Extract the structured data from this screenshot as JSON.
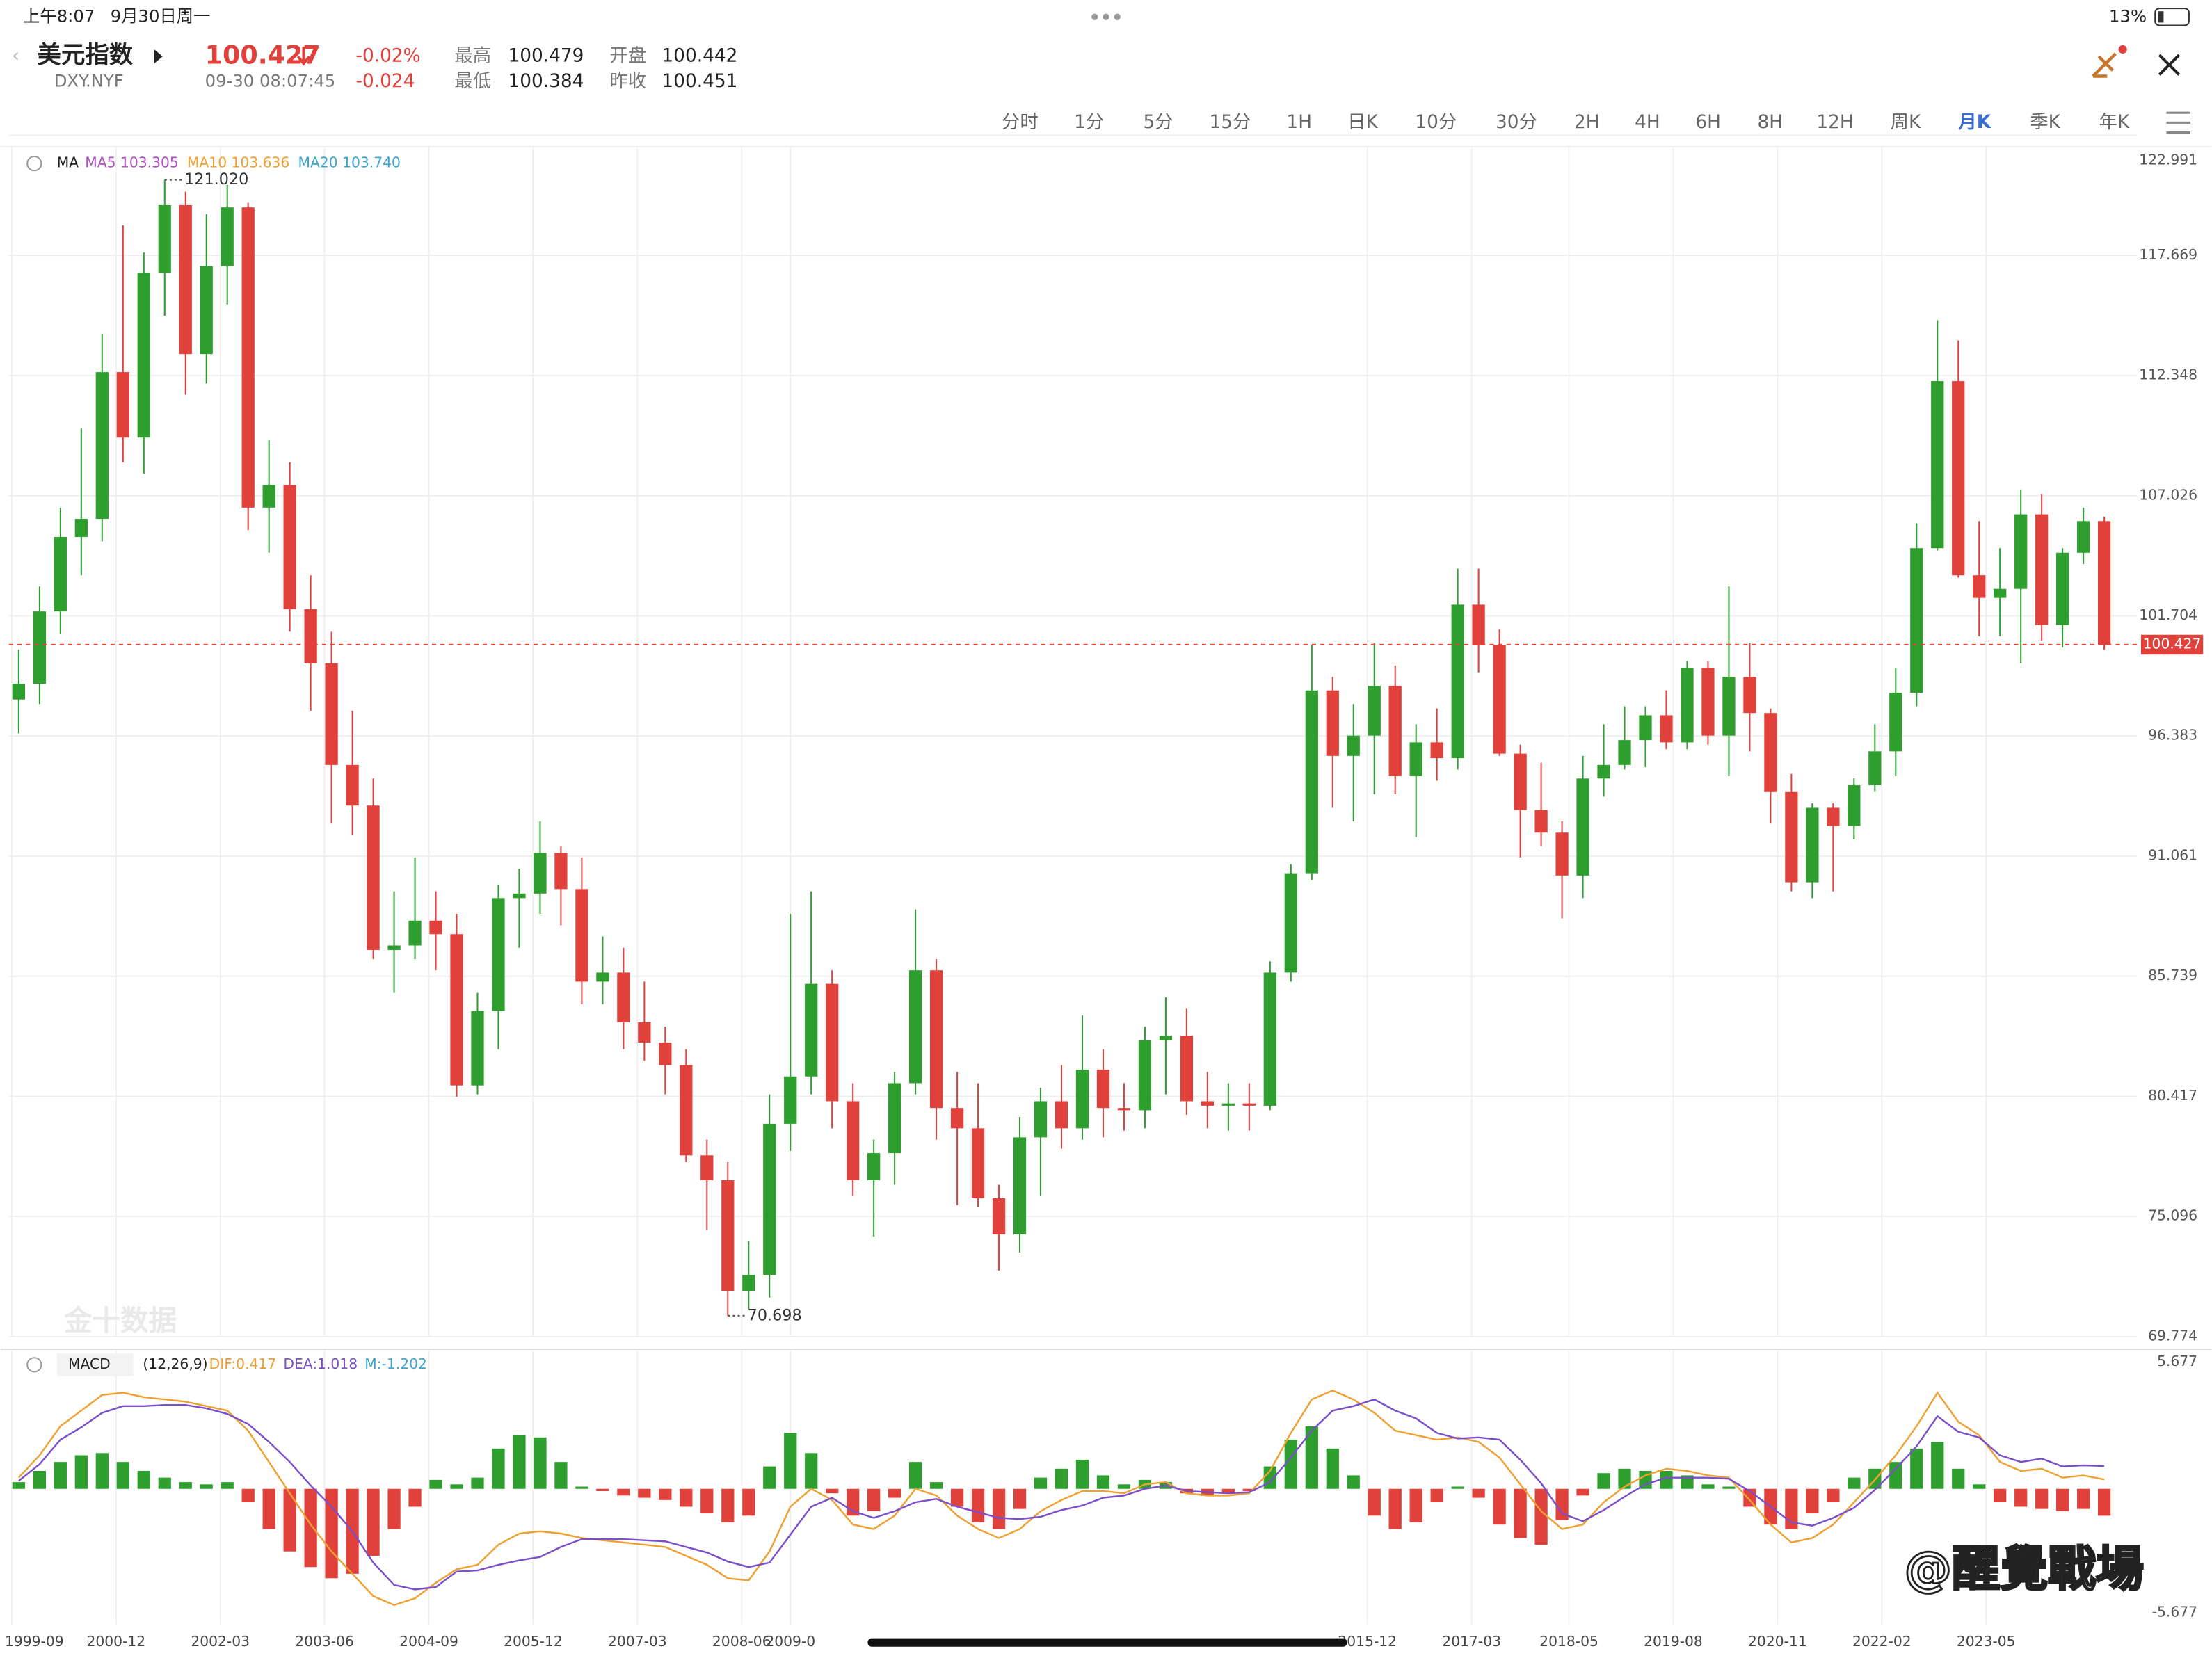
{
  "status_bar": {
    "time": "上午8:07",
    "date": "9月30日周一",
    "battery": "13%"
  },
  "header": {
    "name": "美元指数",
    "symbol": "DXY.NYF",
    "price": "100.427",
    "change_pct": "-0.02%",
    "change": "-0.024",
    "timestamp": "09-30 08:07:45",
    "stats": [
      {
        "label": "最高",
        "value": "100.479"
      },
      {
        "label": "最低",
        "value": "100.384"
      },
      {
        "label": "开盘",
        "value": "100.442"
      },
      {
        "label": "昨收",
        "value": "100.451"
      }
    ]
  },
  "timeframes": [
    "分时",
    "1分",
    "5分",
    "15分",
    "1H",
    "日K",
    "10分",
    "30分",
    "2H",
    "4H",
    "6H",
    "8H",
    "12H",
    "周K",
    "月K",
    "季K",
    "年K"
  ],
  "active_timeframe": "月K",
  "watermark": "金十数据",
  "credit": "@醒覺戰場",
  "chart_data": [
    {
      "type": "candlestick",
      "indicator": "MA",
      "legend": [
        {
          "label": "MA5 103.305",
          "color": "#b04fc4"
        },
        {
          "label": "MA10 103.636",
          "color": "#f0a030"
        },
        {
          "label": "MA20 103.740",
          "color": "#3aa6d0"
        }
      ],
      "up_color": "#2e9e2e",
      "down_color": "#e0413b",
      "x": [
        "1999-09",
        "1999-12",
        "2000-03",
        "2000-06",
        "2000-09",
        "2000-12",
        "2001-03",
        "2001-06",
        "2001-09",
        "2001-12",
        "2002-03",
        "2002-06",
        "2002-09",
        "2002-12",
        "2003-03",
        "2003-06",
        "2003-09",
        "2003-12",
        "2004-03",
        "2004-06",
        "2004-09",
        "2004-12",
        "2005-03",
        "2005-06",
        "2005-09",
        "2005-12",
        "2006-03",
        "2006-06",
        "2006-09",
        "2006-12",
        "2007-03",
        "2007-06",
        "2007-09",
        "2007-12",
        "2008-03",
        "2008-06",
        "2008-09",
        "2008-12",
        "2009-03",
        "2009-06",
        "2009-09",
        "2009-12",
        "2010-03",
        "2010-06",
        "2010-09",
        "2010-12",
        "2011-03",
        "2011-06",
        "2011-09",
        "2011-12",
        "2012-03",
        "2012-06",
        "2012-09",
        "2012-12",
        "2013-03",
        "2013-06",
        "2013-09",
        "2013-12",
        "2014-03",
        "2014-06",
        "2014-09",
        "2014-12",
        "2015-03",
        "2015-06",
        "2015-09",
        "2015-12",
        "2016-03",
        "2016-06",
        "2016-09",
        "2016-12",
        "2017-03",
        "2017-06",
        "2017-09",
        "2017-12",
        "2018-03",
        "2018-06",
        "2018-09",
        "2018-12",
        "2019-03",
        "2019-06",
        "2019-09",
        "2019-12",
        "2020-03",
        "2020-06",
        "2020-09",
        "2020-12",
        "2021-03",
        "2021-06",
        "2021-09",
        "2021-12",
        "2022-03",
        "2022-06",
        "2022-09",
        "2022-12",
        "2023-03",
        "2023-06",
        "2023-09",
        "2023-12",
        "2024-03",
        "2024-06",
        "2024-09"
      ],
      "open": [
        98.0,
        98.7,
        101.9,
        105.2,
        106.0,
        112.5,
        109.6,
        116.9,
        119.9,
        113.3,
        117.2,
        119.8,
        106.5,
        107.5,
        102.0,
        99.6,
        95.1,
        93.3,
        86.9,
        87.1,
        88.2,
        87.6,
        80.9,
        84.2,
        89.2,
        89.4,
        91.2,
        89.6,
        85.5,
        85.9,
        83.7,
        82.8,
        81.8,
        77.8,
        76.7,
        71.8,
        72.5,
        79.2,
        81.3,
        85.4,
        80.2,
        76.7,
        77.9,
        81.0,
        86.0,
        79.9,
        79.0,
        75.9,
        74.3,
        78.6,
        80.2,
        79.0,
        81.6,
        79.9,
        79.8,
        82.9,
        83.1,
        80.2,
        80.0,
        80.1,
        80.0,
        85.9,
        90.3,
        98.4,
        95.5,
        96.4,
        98.6,
        94.6,
        96.1,
        95.4,
        102.2,
        100.4,
        95.6,
        93.1,
        92.1,
        90.2,
        94.5,
        95.1,
        96.2,
        97.3,
        96.1,
        99.4,
        96.4,
        99.0,
        97.4,
        93.9,
        89.9,
        93.2,
        92.4,
        94.2,
        95.7,
        98.3,
        104.7,
        112.1,
        103.5,
        102.5,
        102.9,
        106.2,
        101.3,
        104.5,
        105.9
      ],
      "high": [
        100.2,
        103.0,
        106.5,
        110.0,
        114.2,
        119.0,
        117.8,
        121.02,
        120.5,
        119.5,
        120.8,
        120.0,
        109.5,
        108.5,
        103.5,
        101.0,
        97.5,
        94.5,
        89.5,
        91.0,
        89.5,
        88.5,
        85.0,
        89.8,
        90.5,
        92.6,
        91.5,
        91.0,
        87.5,
        87.0,
        85.5,
        83.5,
        82.5,
        78.5,
        77.5,
        74.0,
        80.5,
        88.5,
        89.5,
        86.0,
        81.0,
        78.5,
        81.5,
        88.7,
        86.5,
        81.5,
        81.0,
        76.5,
        79.5,
        80.8,
        81.8,
        84.0,
        82.5,
        81.0,
        83.5,
        84.8,
        84.3,
        81.5,
        81.0,
        81.0,
        86.4,
        90.7,
        100.4,
        99.0,
        97.8,
        100.5,
        99.5,
        96.9,
        97.6,
        103.8,
        103.8,
        101.1,
        96.0,
        95.2,
        92.6,
        95.5,
        96.9,
        97.7,
        97.7,
        98.4,
        99.7,
        99.7,
        103.0,
        100.5,
        97.6,
        94.7,
        93.4,
        93.4,
        94.5,
        96.9,
        99.4,
        105.8,
        114.8,
        113.9,
        105.9,
        104.7,
        107.3,
        107.1,
        104.7,
        106.5,
        106.1
      ],
      "low": [
        96.5,
        97.8,
        100.9,
        103.5,
        105.0,
        108.5,
        108.0,
        115.0,
        111.5,
        112.0,
        115.5,
        105.5,
        104.5,
        101.0,
        97.5,
        92.5,
        92.0,
        86.5,
        85.0,
        86.5,
        86.0,
        80.4,
        80.5,
        82.5,
        87.0,
        88.5,
        88.0,
        84.5,
        84.5,
        82.5,
        82.0,
        80.5,
        77.5,
        74.5,
        70.698,
        71.0,
        71.5,
        78.0,
        80.5,
        79.0,
        76.0,
        74.2,
        76.5,
        80.5,
        78.5,
        75.6,
        75.5,
        72.7,
        73.5,
        76.0,
        78.1,
        78.5,
        78.6,
        78.9,
        79.0,
        80.5,
        79.6,
        79.0,
        78.9,
        78.9,
        79.8,
        85.5,
        90.0,
        93.2,
        92.6,
        93.8,
        93.8,
        91.9,
        94.4,
        94.9,
        99.2,
        95.5,
        91.0,
        91.5,
        88.3,
        89.2,
        93.7,
        94.9,
        95.0,
        95.8,
        95.8,
        96.0,
        94.6,
        95.7,
        92.5,
        89.5,
        89.2,
        89.5,
        91.8,
        93.9,
        94.6,
        97.7,
        104.6,
        103.4,
        100.8,
        100.8,
        99.6,
        100.6,
        100.3,
        104.0,
        100.2
      ],
      "close": [
        98.7,
        101.9,
        105.2,
        106.0,
        112.5,
        109.6,
        116.9,
        119.9,
        113.3,
        117.2,
        119.8,
        106.5,
        107.5,
        102.0,
        99.6,
        95.1,
        93.3,
        86.9,
        87.1,
        88.2,
        87.6,
        80.9,
        84.2,
        89.2,
        89.4,
        91.2,
        89.6,
        85.5,
        85.9,
        83.7,
        82.8,
        81.8,
        77.8,
        76.7,
        71.8,
        72.5,
        79.2,
        81.3,
        85.4,
        80.2,
        76.7,
        77.9,
        81.0,
        86.0,
        79.9,
        79.0,
        75.9,
        74.3,
        78.6,
        80.2,
        79.0,
        81.6,
        79.9,
        79.8,
        82.9,
        83.1,
        80.2,
        80.0,
        80.1,
        80.0,
        85.9,
        90.3,
        98.4,
        95.5,
        96.4,
        98.6,
        94.6,
        96.1,
        95.4,
        102.2,
        100.4,
        95.6,
        93.1,
        92.1,
        90.2,
        94.5,
        95.1,
        96.2,
        97.3,
        96.1,
        99.4,
        96.4,
        99.0,
        97.4,
        93.9,
        89.9,
        93.2,
        92.4,
        94.2,
        95.7,
        98.3,
        104.7,
        112.1,
        103.5,
        102.5,
        102.9,
        106.2,
        101.3,
        104.5,
        105.9,
        100.427
      ],
      "ylim": [
        69.774,
        122.991
      ],
      "yticks": [
        122.991,
        117.669,
        112.348,
        107.026,
        101.704,
        96.383,
        91.061,
        85.739,
        80.417,
        75.096,
        69.774
      ],
      "xticks": [
        "1999-09",
        "2000-12",
        "2002-03",
        "2003-06",
        "2004-09",
        "2005-12",
        "2007-03",
        "2008-06",
        "2009-0",
        "2015-12",
        "2017-03",
        "2018-05",
        "2019-08",
        "2020-11",
        "2022-02",
        "2023-05"
      ],
      "annotations": [
        {
          "x": "2001-06",
          "value": 121.02,
          "label": "121.020"
        },
        {
          "x": "2008-03",
          "value": 70.698,
          "label": "70.698"
        }
      ],
      "last_price": 100.427,
      "last_color": "#e0413b",
      "grid": true
    },
    {
      "type": "macd",
      "title": "MACD",
      "params": "(12,26,9)",
      "ylim": [
        -5.677,
        5.677
      ],
      "yticks": [
        5.677,
        -5.677
      ],
      "up_color": "#2e9e2e",
      "down_color": "#e0413b",
      "series": [
        {
          "name": "DIF:0.417",
          "color": "#f0a030",
          "values": [
            0.5,
            1.5,
            2.8,
            3.5,
            4.2,
            4.3,
            4.1,
            4.0,
            3.9,
            3.7,
            3.5,
            2.6,
            1.2,
            -0.2,
            -1.6,
            -2.8,
            -3.8,
            -4.8,
            -5.2,
            -4.9,
            -4.2,
            -3.6,
            -3.4,
            -2.5,
            -2.0,
            -1.9,
            -2.0,
            -2.2,
            -2.3,
            -2.4,
            -2.5,
            -2.6,
            -3.0,
            -3.4,
            -4.0,
            -4.1,
            -2.8,
            -0.8,
            0.0,
            -0.5,
            -1.6,
            -1.8,
            -1.2,
            0.0,
            -0.3,
            -1.2,
            -1.8,
            -2.2,
            -1.8,
            -1.0,
            -0.5,
            -0.1,
            -0.1,
            -0.2,
            0.2,
            0.3,
            -0.2,
            -0.3,
            -0.3,
            -0.2,
            0.8,
            2.5,
            4.0,
            4.4,
            4.0,
            3.4,
            2.6,
            2.4,
            2.2,
            2.3,
            2.1,
            1.4,
            0.2,
            -1.0,
            -1.8,
            -1.6,
            -0.6,
            0.1,
            0.6,
            0.9,
            0.8,
            0.6,
            0.5,
            -0.5,
            -1.6,
            -2.4,
            -2.2,
            -1.6,
            -0.6,
            0.4,
            1.5,
            2.8,
            4.3,
            3.0,
            2.4,
            1.2,
            0.8,
            0.9,
            0.5,
            0.6,
            0.417
          ]
        },
        {
          "name": "DEA:1.018",
          "color": "#7a4fc9",
          "values": [
            0.35,
            1.1,
            2.2,
            2.75,
            3.4,
            3.7,
            3.7,
            3.75,
            3.75,
            3.6,
            3.35,
            2.9,
            2.1,
            1.2,
            0.15,
            -0.8,
            -1.9,
            -3.3,
            -4.3,
            -4.5,
            -4.4,
            -3.7,
            -3.65,
            -3.4,
            -3.2,
            -3.05,
            -2.6,
            -2.25,
            -2.25,
            -2.25,
            -2.3,
            -2.35,
            -2.6,
            -2.85,
            -3.25,
            -3.5,
            -3.3,
            -2.05,
            -0.8,
            -0.4,
            -1.0,
            -1.3,
            -1.0,
            -0.6,
            -0.45,
            -0.8,
            -1.05,
            -1.3,
            -1.35,
            -1.25,
            -0.95,
            -0.75,
            -0.4,
            -0.3,
            0.0,
            0.15,
            -0.1,
            -0.15,
            -0.2,
            -0.15,
            0.3,
            1.4,
            2.6,
            3.5,
            3.7,
            4.0,
            3.5,
            3.15,
            2.5,
            2.25,
            2.3,
            2.2,
            1.3,
            0.25,
            -1.1,
            -1.45,
            -0.95,
            -0.35,
            0.2,
            0.5,
            0.5,
            0.5,
            0.45,
            -0.1,
            -0.8,
            -1.5,
            -1.65,
            -1.3,
            -0.85,
            -0.05,
            0.9,
            1.9,
            3.25,
            2.55,
            2.3,
            1.5,
            1.2,
            1.35,
            1.0,
            1.05,
            1.018
          ]
        },
        {
          "name": "M:-1.202",
          "color": "#3aa6d0",
          "values": [
            0.3,
            0.8,
            1.2,
            1.5,
            1.6,
            1.2,
            0.8,
            0.5,
            0.3,
            0.2,
            0.3,
            -0.6,
            -1.8,
            -2.8,
            -3.5,
            -4.0,
            -3.8,
            -3.0,
            -1.8,
            -0.8,
            0.4,
            0.2,
            0.5,
            1.8,
            2.4,
            2.3,
            1.2,
            0.1,
            -0.1,
            -0.3,
            -0.4,
            -0.5,
            -0.8,
            -1.1,
            -1.5,
            -1.2,
            1.0,
            2.5,
            1.6,
            -0.2,
            -1.2,
            -1.0,
            -0.4,
            1.2,
            0.3,
            -0.8,
            -1.5,
            -1.8,
            -0.9,
            0.5,
            0.9,
            1.3,
            0.6,
            0.2,
            0.4,
            0.3,
            -0.2,
            -0.3,
            -0.2,
            -0.1,
            1.0,
            2.2,
            2.8,
            1.8,
            0.6,
            -1.2,
            -1.8,
            -1.5,
            -0.6,
            0.1,
            -0.4,
            -1.6,
            -2.2,
            -2.5,
            -1.4,
            -0.3,
            0.7,
            0.9,
            0.8,
            0.8,
            0.6,
            0.2,
            0.1,
            -0.8,
            -1.6,
            -1.8,
            -1.1,
            -0.6,
            0.5,
            0.9,
            1.2,
            1.8,
            2.1,
            0.9,
            0.2,
            -0.6,
            -0.8,
            -0.9,
            -1.0,
            -0.9,
            -1.202
          ],
          "histogram": true
        }
      ]
    }
  ]
}
